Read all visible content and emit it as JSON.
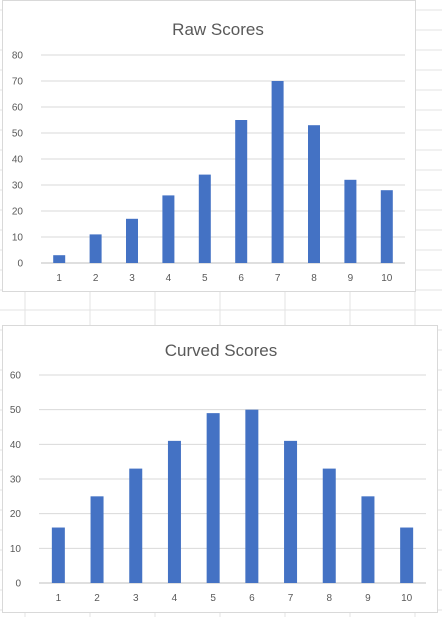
{
  "chart_data": [
    {
      "type": "bar",
      "title": "Raw Scores",
      "categories": [
        "1",
        "2",
        "3",
        "4",
        "5",
        "6",
        "7",
        "8",
        "9",
        "10"
      ],
      "values": [
        3,
        11,
        17,
        26,
        34,
        55,
        70,
        53,
        32,
        28
      ],
      "ylim": [
        0,
        80
      ],
      "yticks": [
        0,
        10,
        20,
        30,
        40,
        50,
        60,
        70,
        80
      ],
      "grid": true,
      "bar_color": "#4472c4"
    },
    {
      "type": "bar",
      "title": "Curved Scores",
      "categories": [
        "1",
        "2",
        "3",
        "4",
        "5",
        "6",
        "7",
        "8",
        "9",
        "10"
      ],
      "values": [
        16,
        25,
        33,
        41,
        49,
        50,
        41,
        33,
        25,
        16
      ],
      "ylim": [
        0,
        60
      ],
      "yticks": [
        0,
        10,
        20,
        30,
        40,
        50,
        60
      ],
      "grid": true,
      "bar_color": "#4472c4"
    }
  ]
}
